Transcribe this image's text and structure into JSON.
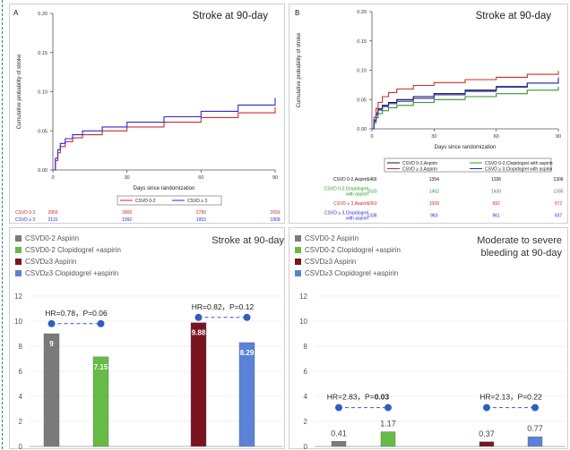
{
  "chart_data": [
    {
      "type": "line",
      "panel": "A",
      "title": "Stroke at 90-day",
      "xlabel": "Days since randomization",
      "ylabel": "Cumulative probability of stroke",
      "xlim": [
        0,
        90
      ],
      "ylim": [
        0,
        0.2
      ],
      "x_ticks": [
        "0",
        "30",
        "60",
        "90"
      ],
      "y_ticks": [
        "0.00",
        "0.05",
        "0.10",
        "0.15",
        "0.20"
      ],
      "legend_position": "bottom-center",
      "series": [
        {
          "name": "CSVD 0-2",
          "color": "#d42a2a",
          "x": [
            0,
            1,
            2,
            3,
            5,
            8,
            12,
            20,
            30,
            45,
            60,
            75,
            90
          ],
          "y": [
            0,
            0.012,
            0.022,
            0.03,
            0.036,
            0.041,
            0.045,
            0.05,
            0.055,
            0.061,
            0.067,
            0.073,
            0.08
          ]
        },
        {
          "name": "CSVD ≥ 3",
          "color": "#2a2ad4",
          "x": [
            0,
            1,
            2,
            3,
            5,
            8,
            12,
            20,
            30,
            45,
            60,
            75,
            90
          ],
          "y": [
            0,
            0.015,
            0.026,
            0.034,
            0.04,
            0.045,
            0.05,
            0.055,
            0.061,
            0.068,
            0.075,
            0.083,
            0.092
          ]
        }
      ],
      "risk_table": {
        "rows": [
          {
            "label": "CSVD 0-2",
            "color": "#d42a2a",
            "values": [
              "2959",
              "2806",
              "2789",
              "2659"
            ]
          },
          {
            "label": "CSVD ≥ 3",
            "color": "#2a2ad4",
            "values": [
              "2131",
              "1992",
              "1953",
              "1909"
            ]
          }
        ]
      }
    },
    {
      "type": "line",
      "panel": "B",
      "title": "Stroke at 90-day",
      "xlabel": "Days since randomization",
      "ylabel": "Cumulative probability of stroke",
      "xlim": [
        0,
        90
      ],
      "ylim": [
        0,
        0.2
      ],
      "x_ticks": [
        "0",
        "30",
        "60",
        "90"
      ],
      "y_ticks": [
        "0.00",
        "0.05",
        "0.10",
        "0.15",
        "0.20"
      ],
      "legend_position": "bottom-center",
      "series": [
        {
          "name": "CSVD 0-2,Aspirin",
          "color": "#111111",
          "x": [
            0,
            1,
            2,
            3,
            5,
            8,
            12,
            20,
            30,
            45,
            60,
            75,
            90
          ],
          "y": [
            0,
            0.015,
            0.027,
            0.034,
            0.04,
            0.045,
            0.05,
            0.055,
            0.06,
            0.066,
            0.072,
            0.078,
            0.085
          ]
        },
        {
          "name": "CSVD 0-2,Clopidogrel with aspirin",
          "color": "#2a9a2a",
          "x": [
            0,
            1,
            2,
            3,
            5,
            8,
            12,
            20,
            30,
            45,
            60,
            75,
            90
          ],
          "y": [
            0,
            0.01,
            0.019,
            0.026,
            0.031,
            0.036,
            0.04,
            0.045,
            0.05,
            0.055,
            0.06,
            0.066,
            0.072
          ]
        },
        {
          "name": "CSVD ≥ 3,Aspirin",
          "color": "#d42a2a",
          "x": [
            0,
            1,
            2,
            3,
            5,
            8,
            12,
            20,
            30,
            45,
            60,
            75,
            90
          ],
          "y": [
            0,
            0.02,
            0.035,
            0.045,
            0.055,
            0.062,
            0.068,
            0.074,
            0.079,
            0.084,
            0.088,
            0.093,
            0.099
          ]
        },
        {
          "name": "CSVD ≥ 3,Clopidogrel with aspirin",
          "color": "#2a2ad4",
          "x": [
            0,
            1,
            2,
            3,
            5,
            8,
            12,
            20,
            30,
            45,
            60,
            75,
            90
          ],
          "y": [
            0,
            0.013,
            0.024,
            0.032,
            0.038,
            0.043,
            0.047,
            0.052,
            0.058,
            0.064,
            0.071,
            0.078,
            0.088
          ]
        }
      ],
      "risk_table": {
        "rows": [
          {
            "label": "CSVD 0-2,Aspirin",
            "color": "#111111",
            "values": [
              "1466",
              "1354",
              "1336",
              "1306"
            ]
          },
          {
            "label": "CSVD 0-2,Clopidogrel with aspirin",
            "color": "#2a9a2a",
            "values": [
              "1533",
              "1452",
              "1430",
              "1395"
            ]
          },
          {
            "label": "CSVD ≥ 3,Aspirin",
            "color": "#d42a2a",
            "values": [
              "1063",
              "1009",
              "992",
              "972"
            ]
          },
          {
            "label": "CSVD ≥ 3,Clopidogrel with aspirin",
            "color": "#2a2ad4",
            "values": [
              "1338",
              "983",
              "961",
              "937"
            ]
          }
        ]
      }
    },
    {
      "type": "bar",
      "title": "Stroke at 90-day",
      "ylim": [
        0,
        12
      ],
      "y_ticks": [
        "0",
        "2",
        "4",
        "6",
        "8",
        "10",
        "12"
      ],
      "legend": [
        {
          "name": "CSVD0-2 Aspirin",
          "color": "#7a7a7a"
        },
        {
          "name": "CSVD0-2 Clopidogrel +aspirin",
          "color": "#66bb44"
        },
        {
          "name": "CSVD≥3 Aspirin",
          "color": "#7a1420"
        },
        {
          "name": "CSVD≥3 Clopidogrel +aspirin",
          "color": "#5a82d8"
        }
      ],
      "values": [
        9,
        7.15,
        9.88,
        8.29
      ],
      "value_labels": [
        "9",
        "7.15",
        "9.88",
        "8.29"
      ],
      "hr_annotations": [
        {
          "text": "HR=0.78，P=0.06",
          "y": 9.8
        },
        {
          "text": "HR=0.82，P=0.12",
          "y": 10.3
        }
      ]
    },
    {
      "type": "bar",
      "title": "Moderate to severe bleeding at 90-day",
      "title_lines": [
        "Moderate to severe",
        "bleeding at 90-day"
      ],
      "ylim": [
        0,
        12
      ],
      "y_ticks": [
        "0",
        "2",
        "4",
        "6",
        "8",
        "10",
        "12"
      ],
      "legend": [
        {
          "name": "CSVD0-2 Aspirin",
          "color": "#7a7a7a"
        },
        {
          "name": "CSVD0-2 Clopidogrel +aspirin",
          "color": "#66bb44"
        },
        {
          "name": "CSVD≥3 Aspirin",
          "color": "#7a1420"
        },
        {
          "name": "CSVD≥3 Clopidogrel +aspirin",
          "color": "#5a82d8"
        }
      ],
      "values": [
        0.41,
        1.17,
        0.37,
        0.77
      ],
      "value_labels": [
        "0.41",
        "1.17",
        "0.37",
        "0.77"
      ],
      "hr_annotations": [
        {
          "text": "HR=2.83，P=",
          "p_bold": "0.03",
          "y": 3.1
        },
        {
          "text": "HR=2.13，P=0.22",
          "y": 3.1
        }
      ]
    }
  ]
}
